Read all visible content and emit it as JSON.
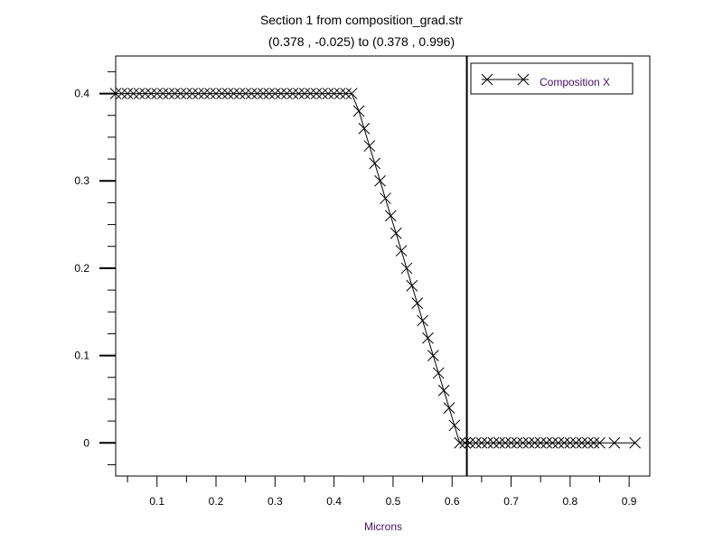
{
  "chart_data": {
    "type": "line",
    "title": "Section 1 from composition_grad.str",
    "subtitle": "(0.378 , -0.025) to (0.378 , 0.996)",
    "xlabel": "Microns",
    "ylabel": "",
    "xlim": [
      0.03,
      0.935
    ],
    "ylim": [
      -0.038,
      0.443
    ],
    "x_ticks": [
      0.1,
      0.2,
      0.3,
      0.4,
      0.5,
      0.6,
      0.7,
      0.8,
      0.9
    ],
    "x_tick_labels": [
      "0.1",
      "0.2",
      "0.3",
      "0.4",
      "0.5",
      "0.6",
      "0.7",
      "0.8",
      "0.9"
    ],
    "y_ticks": [
      0,
      0.1,
      0.2,
      0.3,
      0.4
    ],
    "y_tick_labels": [
      "0",
      "0.1",
      "0.2",
      "0.3",
      "0.4"
    ],
    "grid": false,
    "legend_position": "top-right",
    "marker": "x",
    "vertical_line_x": 0.625,
    "colors": {
      "line": "#000000",
      "label": "#4b1063",
      "background": "#ffffff"
    },
    "series": [
      {
        "name": "Composition X",
        "x": [
          0.03,
          0.04,
          0.05,
          0.06,
          0.07,
          0.08,
          0.09,
          0.1,
          0.11,
          0.12,
          0.13,
          0.14,
          0.15,
          0.16,
          0.17,
          0.18,
          0.19,
          0.2,
          0.21,
          0.22,
          0.23,
          0.24,
          0.25,
          0.26,
          0.27,
          0.28,
          0.29,
          0.3,
          0.31,
          0.32,
          0.33,
          0.34,
          0.35,
          0.36,
          0.37,
          0.38,
          0.39,
          0.4,
          0.41,
          0.42,
          0.43,
          0.442,
          0.451,
          0.46,
          0.469,
          0.478,
          0.487,
          0.496,
          0.505,
          0.514,
          0.523,
          0.532,
          0.541,
          0.55,
          0.559,
          0.568,
          0.577,
          0.586,
          0.595,
          0.604,
          0.613,
          0.622,
          0.63,
          0.64,
          0.65,
          0.66,
          0.67,
          0.68,
          0.69,
          0.7,
          0.71,
          0.72,
          0.73,
          0.74,
          0.75,
          0.76,
          0.77,
          0.78,
          0.79,
          0.8,
          0.81,
          0.82,
          0.83,
          0.84,
          0.85,
          0.875,
          0.91
        ],
        "y": [
          0.4,
          0.4,
          0.4,
          0.4,
          0.4,
          0.4,
          0.4,
          0.4,
          0.4,
          0.4,
          0.4,
          0.4,
          0.4,
          0.4,
          0.4,
          0.4,
          0.4,
          0.4,
          0.4,
          0.4,
          0.4,
          0.4,
          0.4,
          0.4,
          0.4,
          0.4,
          0.4,
          0.4,
          0.4,
          0.4,
          0.4,
          0.4,
          0.4,
          0.4,
          0.4,
          0.4,
          0.4,
          0.4,
          0.4,
          0.4,
          0.4,
          0.38,
          0.36,
          0.34,
          0.32,
          0.3,
          0.28,
          0.26,
          0.24,
          0.22,
          0.2,
          0.18,
          0.16,
          0.14,
          0.12,
          0.1,
          0.08,
          0.06,
          0.04,
          0.02,
          0.0,
          0.0,
          0,
          0,
          0,
          0,
          0,
          0,
          0,
          0,
          0,
          0,
          0,
          0,
          0,
          0,
          0,
          0,
          0,
          0,
          0,
          0,
          0,
          0,
          0,
          0,
          0
        ]
      }
    ]
  }
}
